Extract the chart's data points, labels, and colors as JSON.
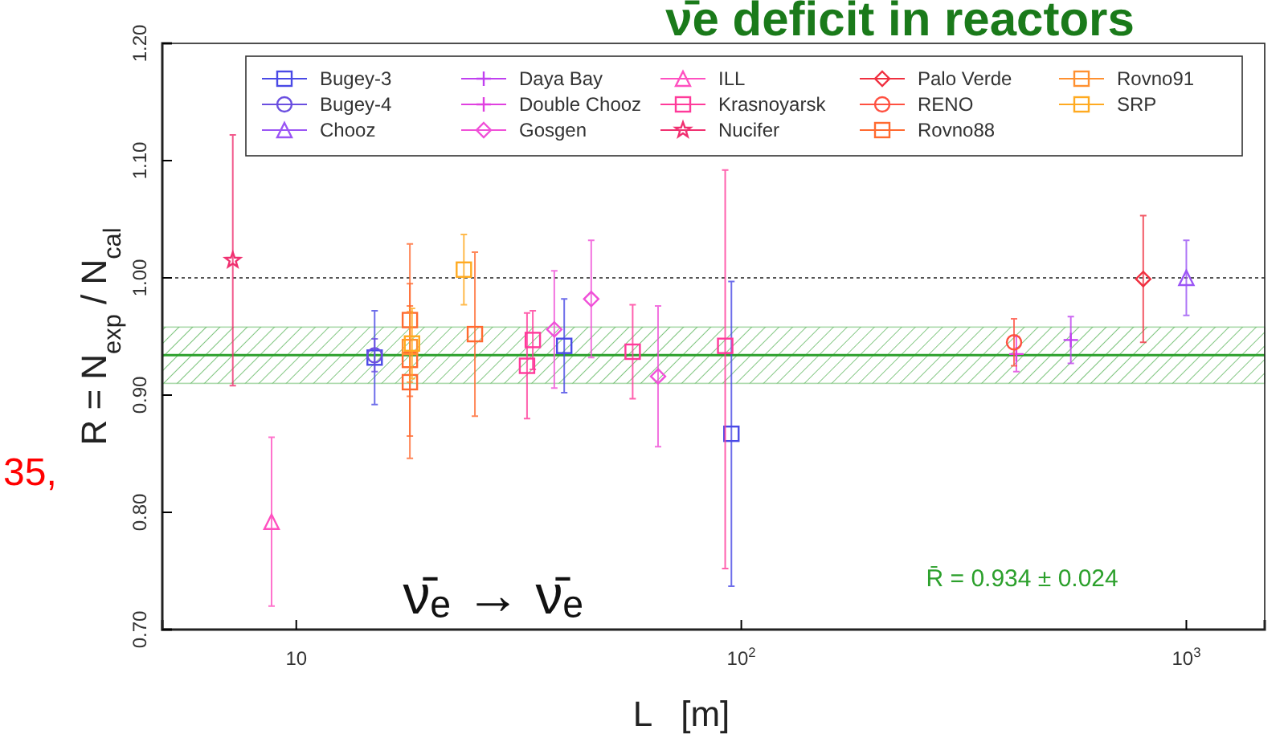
{
  "chart_data": {
    "type": "scatter",
    "title": "ν̄e deficit in reactors",
    "xlabel": "L   [m]",
    "ylabel": "R = N$_{exp}$ / N$_{cal}$",
    "log": "x",
    "xlim": [
      5,
      1500
    ],
    "xticks": [
      10,
      {
        "value": 100,
        "label": "10$^{2}$"
      },
      {
        "value": 1000,
        "label": "10$^{3}$"
      }
    ],
    "ylim": [
      0.7,
      1.2
    ],
    "yticks": [
      {
        "value": 0.7,
        "label": "0.70"
      },
      {
        "value": 0.8,
        "label": "0.80"
      },
      {
        "value": 0.9,
        "label": "0.90"
      },
      {
        "value": 1.0,
        "label": "1.00"
      },
      {
        "value": 1.1,
        "label": "1.10"
      },
      {
        "value": 1.2,
        "label": "1.20"
      }
    ],
    "grid": false,
    "legend": "top right",
    "ref_lines": [
      {
        "axis": "y",
        "value": 1.0,
        "color": "#555555",
        "line_style": "dotted"
      },
      {
        "axis": "y",
        "value": 0.934,
        "color": "#2ca02c",
        "line_style": "solid",
        "label": "R̄ = 0.934 ± 0.024"
      }
    ],
    "bands": [
      {
        "axis": "y",
        "from": 0.91,
        "to": 0.958,
        "color": "#2ca02c"
      }
    ],
    "annotations": [
      {
        "text": "ν̄ₑ → ν̄ₑ"
      },
      {
        "text": "35,"
      }
    ],
    "series": [
      {
        "name": "Bugey-3",
        "color": "#4a4ae6",
        "marker": "square",
        "x": [
          15,
          40,
          95
        ],
        "values": [
          0.932,
          0.942,
          0.867
        ],
        "errors": [
          0.04,
          0.04,
          0.13
        ]
      },
      {
        "name": "Bugey-4",
        "color": "#6a4ee0",
        "marker": "circle",
        "x": [
          15
        ],
        "values": [
          0.934
        ],
        "errors": [
          0.014
        ]
      },
      {
        "name": "Chooz",
        "color": "#9b55f5",
        "marker": "triangle",
        "x": [
          1000
        ],
        "values": [
          1.0
        ],
        "errors": [
          0.032
        ]
      },
      {
        "name": "Daya Bay",
        "color": "#c040f0",
        "marker": "cross",
        "x": [
          550
        ],
        "values": [
          0.947
        ],
        "errors": [
          0.02
        ]
      },
      {
        "name": "Double Chooz",
        "color": "#e040e0",
        "marker": "cross",
        "x": [
          415
        ],
        "values": [
          0.935
        ],
        "errors": [
          0.015
        ]
      },
      {
        "name": "Gosgen",
        "color": "#f050d8",
        "marker": "diamond",
        "x": [
          38,
          46,
          65
        ],
        "values": [
          0.956,
          0.982,
          0.916
        ],
        "errors": [
          0.05,
          0.05,
          0.06
        ]
      },
      {
        "name": "ILL",
        "color": "#ff50c0",
        "marker": "triangle",
        "x": [
          8.8
        ],
        "values": [
          0.792
        ],
        "errors": [
          0.072
        ]
      },
      {
        "name": "Krasnoyarsk",
        "color": "#ff3a9a",
        "marker": "square",
        "x": [
          33,
          34,
          57,
          92
        ],
        "values": [
          0.925,
          0.947,
          0.937,
          0.942
        ],
        "errors": [
          0.045,
          0.025,
          0.04,
          [
            0.752,
            1.092
          ]
        ]
      },
      {
        "name": "Nucifer",
        "color": "#f03070",
        "marker": "star",
        "x": [
          7.2
        ],
        "values": [
          1.015
        ],
        "errors": [
          0.107
        ]
      },
      {
        "name": "Palo Verde",
        "color": "#f03040",
        "marker": "diamond",
        "x": [
          800
        ],
        "values": [
          0.999
        ],
        "errors": [
          0.054
        ]
      },
      {
        "name": "RENO",
        "color": "#ff5040",
        "marker": "circle",
        "x": [
          410
        ],
        "values": [
          0.945
        ],
        "errors": [
          0.02
        ]
      },
      {
        "name": "Rovno88",
        "color": "#ff6a30",
        "marker": "square",
        "x": [
          18,
          18,
          18,
          25.2
        ],
        "values": [
          0.964,
          0.93,
          0.911,
          0.952
        ],
        "errors": [
          0.065,
          0.065,
          0.065,
          0.07
        ]
      },
      {
        "name": "Rovno91",
        "color": "#ff9030",
        "marker": "square",
        "x": [
          18
        ],
        "values": [
          0.941
        ],
        "errors": [
          0.03
        ]
      },
      {
        "name": "SRP",
        "color": "#ffaa20",
        "marker": "square",
        "x": [
          18.2,
          23.8
        ],
        "values": [
          0.944,
          1.007
        ],
        "errors": [
          0.03,
          0.03
        ]
      }
    ]
  }
}
